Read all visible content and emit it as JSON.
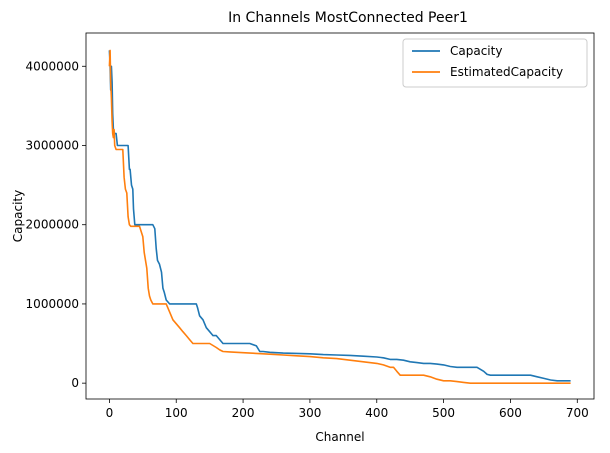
{
  "chart_data": {
    "type": "line",
    "title": "In Channels MostConnected Peer1",
    "xlabel": "Channel",
    "ylabel": "Capacity",
    "xlim": [
      -35,
      725
    ],
    "ylim": [
      -200000,
      4420000
    ],
    "xticks": [
      0,
      100,
      200,
      300,
      400,
      500,
      600,
      700
    ],
    "yticks": [
      0,
      1000000,
      2000000,
      3000000,
      4000000
    ],
    "xtick_labels": [
      "0",
      "100",
      "200",
      "300",
      "400",
      "500",
      "600",
      "700"
    ],
    "ytick_labels": [
      "0",
      "1000000",
      "2000000",
      "3000000",
      "4000000"
    ],
    "grid": false,
    "legend_position": "top-right",
    "series": [
      {
        "name": "Capacity",
        "color": "#1f77b4",
        "x": [
          0,
          1,
          2,
          3,
          4,
          5,
          6,
          8,
          10,
          12,
          14,
          15,
          20,
          25,
          28,
          30,
          31,
          33,
          35,
          36,
          38,
          40,
          42,
          45,
          50,
          55,
          60,
          65,
          68,
          70,
          72,
          75,
          78,
          80,
          82,
          85,
          90,
          95,
          100,
          105,
          110,
          115,
          120,
          125,
          130,
          132,
          135,
          140,
          145,
          150,
          155,
          160,
          165,
          170,
          180,
          190,
          200,
          210,
          220,
          225,
          230,
          240,
          250,
          260,
          280,
          300,
          320,
          340,
          360,
          380,
          400,
          410,
          420,
          430,
          440,
          450,
          460,
          470,
          480,
          490,
          500,
          510,
          520,
          530,
          540,
          550,
          560,
          565,
          570,
          580,
          590,
          600,
          610,
          620,
          630,
          640,
          650,
          660,
          670,
          680,
          690
        ],
        "y": [
          4200000,
          4000000,
          3700000,
          4000000,
          3800000,
          3400000,
          3200000,
          3150000,
          3150000,
          3000000,
          3000000,
          3000000,
          3000000,
          3000000,
          3000000,
          2700000,
          2700000,
          2500000,
          2450000,
          2200000,
          2000000,
          2000000,
          2000000,
          2000000,
          2000000,
          2000000,
          2000000,
          2000000,
          1950000,
          1700000,
          1550000,
          1500000,
          1400000,
          1200000,
          1150000,
          1050000,
          1000000,
          1000000,
          1000000,
          1000000,
          1000000,
          1000000,
          1000000,
          1000000,
          1000000,
          950000,
          850000,
          800000,
          700000,
          650000,
          600000,
          600000,
          550000,
          500000,
          500000,
          500000,
          500000,
          500000,
          470000,
          400000,
          400000,
          390000,
          385000,
          380000,
          375000,
          370000,
          360000,
          355000,
          350000,
          340000,
          330000,
          320000,
          300000,
          300000,
          290000,
          270000,
          260000,
          250000,
          250000,
          240000,
          230000,
          210000,
          200000,
          200000,
          200000,
          200000,
          150000,
          110000,
          100000,
          100000,
          100000,
          100000,
          100000,
          100000,
          100000,
          80000,
          60000,
          40000,
          30000,
          30000,
          30000
        ]
      },
      {
        "name": "EstimatedCapacity",
        "color": "#ff7f0e",
        "x": [
          0,
          1,
          2,
          3,
          4,
          5,
          6,
          7,
          8,
          10,
          12,
          14,
          16,
          18,
          20,
          22,
          24,
          26,
          28,
          30,
          32,
          35,
          40,
          45,
          50,
          52,
          54,
          56,
          58,
          60,
          62,
          65,
          68,
          70,
          75,
          80,
          85,
          90,
          95,
          100,
          105,
          110,
          115,
          120,
          125,
          130,
          135,
          140,
          150,
          160,
          165,
          170,
          180,
          200,
          220,
          240,
          260,
          280,
          300,
          320,
          340,
          360,
          380,
          400,
          410,
          420,
          425,
          430,
          435,
          440,
          445,
          450,
          460,
          470,
          480,
          490,
          500,
          510,
          520,
          530,
          540,
          550,
          560,
          570,
          580,
          590,
          600,
          620,
          640,
          660,
          680,
          690
        ],
        "y": [
          4000000,
          4200000,
          3800000,
          3600000,
          3300000,
          3150000,
          3100000,
          3200000,
          3000000,
          2950000,
          2950000,
          2950000,
          2950000,
          2950000,
          2950000,
          2600000,
          2450000,
          2400000,
          2100000,
          2000000,
          1980000,
          1980000,
          1980000,
          1980000,
          1850000,
          1650000,
          1550000,
          1450000,
          1200000,
          1100000,
          1050000,
          1000000,
          1000000,
          1000000,
          1000000,
          1000000,
          1000000,
          900000,
          800000,
          750000,
          700000,
          650000,
          600000,
          550000,
          500000,
          500000,
          500000,
          500000,
          500000,
          450000,
          420000,
          400000,
          395000,
          385000,
          375000,
          365000,
          355000,
          345000,
          335000,
          320000,
          310000,
          290000,
          270000,
          250000,
          230000,
          200000,
          200000,
          150000,
          100000,
          100000,
          100000,
          100000,
          100000,
          100000,
          80000,
          50000,
          30000,
          30000,
          20000,
          10000,
          0,
          0,
          0,
          0,
          0,
          0,
          0,
          0,
          0,
          0,
          0,
          0
        ]
      }
    ]
  }
}
